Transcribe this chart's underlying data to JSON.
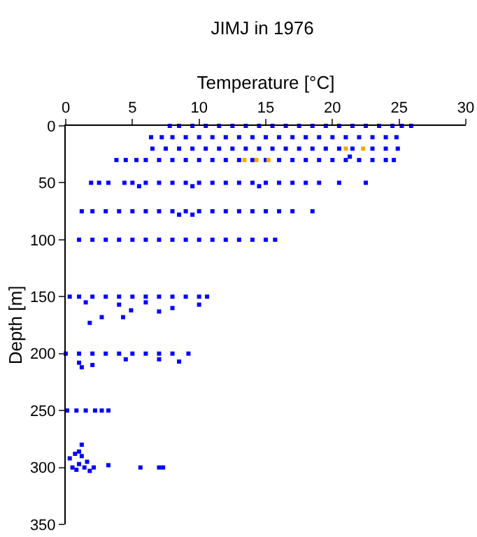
{
  "chart_data": {
    "type": "scatter",
    "title": "JIMJ in 1976",
    "xlabel": "Temperature [°C]",
    "ylabel": "Depth [m]",
    "xlim": [
      0,
      30
    ],
    "xticks": [
      0,
      5,
      10,
      15,
      20,
      25,
      30
    ],
    "ylim": [
      350,
      0
    ],
    "yticks": [
      0,
      50,
      100,
      150,
      200,
      250,
      300,
      350
    ],
    "grid": false,
    "marker": "square",
    "series": [
      {
        "color": "#0000ff",
        "x": [
          7.8,
          8.5,
          9.5,
          10.5,
          11.5,
          12.5,
          13.5,
          14.5,
          15.5,
          16.5,
          17.5,
          18.5,
          19.5,
          20.5,
          21.5,
          22.5,
          23.5,
          24.5,
          25.2,
          25.9,
          6.4,
          7.2,
          8,
          9,
          10,
          11,
          12,
          13,
          14,
          15,
          16,
          17,
          18,
          19,
          20,
          21,
          22,
          23,
          24,
          24.8,
          6.5,
          7.5,
          8.5,
          9.5,
          10.5,
          11.5,
          12.5,
          13.5,
          14.5,
          15.5,
          16.5,
          17.5,
          18.5,
          19.5,
          20.5,
          21.5,
          23,
          24,
          24.9,
          21.3,
          3.8,
          4.5,
          5.3,
          6,
          7,
          8,
          9,
          10,
          11,
          12,
          13,
          14,
          15,
          16,
          17,
          18,
          19,
          20,
          21,
          22,
          23,
          24,
          24.6,
          1.9,
          2.5,
          3.2,
          4.4,
          5,
          6,
          7,
          8,
          9,
          10,
          11,
          12,
          13,
          14,
          15,
          16,
          17,
          18,
          19,
          20.5,
          22.5,
          5.5,
          9.5,
          14.5,
          1.2,
          2,
          3,
          4,
          5,
          6,
          7,
          8,
          9,
          10,
          11,
          12,
          13,
          14,
          15,
          16,
          17,
          18.5,
          8.5,
          9.5,
          1,
          2,
          3,
          4,
          5,
          6,
          7,
          8,
          9,
          10,
          11,
          12,
          13,
          14,
          15,
          15.7,
          0.3,
          1,
          2,
          3,
          4,
          5,
          6,
          7,
          8,
          9,
          10,
          10.6,
          1.5,
          4,
          6,
          8,
          10,
          1.8,
          2.7,
          4.3,
          4.9,
          7,
          0,
          1,
          2,
          3,
          4,
          5,
          6,
          7,
          8,
          9.2,
          1,
          1.2,
          2,
          4.5,
          7,
          8.5,
          0.1,
          0.8,
          1.5,
          2.2,
          2.7,
          3.2,
          0.5,
          0.8,
          1,
          1.2,
          1.4,
          1.6,
          1.8,
          2.1,
          1,
          1.2,
          0.3,
          0.7,
          3.2,
          5.6,
          7,
          7.3
        ],
        "values": [
          0,
          0,
          0,
          0,
          0,
          0,
          0,
          0,
          0,
          0,
          0,
          0,
          0,
          0,
          0,
          0,
          0,
          0,
          0,
          0,
          10,
          10,
          10,
          10,
          10,
          10,
          10,
          10,
          10,
          10,
          10,
          10,
          10,
          10,
          10,
          10,
          10,
          10,
          10,
          10,
          20,
          20,
          20,
          20,
          20,
          20,
          20,
          20,
          20,
          20,
          20,
          20,
          20,
          20,
          20,
          20,
          20,
          20,
          20,
          27,
          30,
          30,
          30,
          30,
          30,
          30,
          30,
          30,
          30,
          30,
          30,
          30,
          30,
          30,
          30,
          30,
          30,
          30,
          30,
          30,
          30,
          30,
          30,
          50,
          50,
          50,
          50,
          50,
          50,
          50,
          50,
          50,
          50,
          50,
          50,
          50,
          50,
          50,
          50,
          50,
          50,
          50,
          50,
          50,
          53,
          53,
          53,
          75,
          75,
          75,
          75,
          75,
          75,
          75,
          75,
          75,
          75,
          75,
          75,
          75,
          75,
          75,
          75,
          75,
          75,
          78,
          78,
          100,
          100,
          100,
          100,
          100,
          100,
          100,
          100,
          100,
          100,
          100,
          100,
          100,
          100,
          100,
          100,
          150,
          150,
          150,
          150,
          150,
          150,
          150,
          150,
          150,
          150,
          150,
          150,
          155,
          157,
          155,
          160,
          157,
          173,
          168,
          168,
          162,
          163,
          200,
          200,
          200,
          200,
          200,
          200,
          200,
          200,
          200,
          200,
          208,
          212,
          210,
          205,
          205,
          207,
          250,
          250,
          250,
          250,
          250,
          250,
          300,
          302,
          297,
          290,
          300,
          295,
          303,
          300,
          286,
          280,
          292,
          288,
          298,
          300,
          300,
          300
        ]
      },
      {
        "color": "#ffa500",
        "x": [
          21,
          22.3,
          13.4,
          14.3,
          15.2
        ],
        "values": [
          20,
          20,
          30,
          30,
          30
        ]
      }
    ]
  }
}
